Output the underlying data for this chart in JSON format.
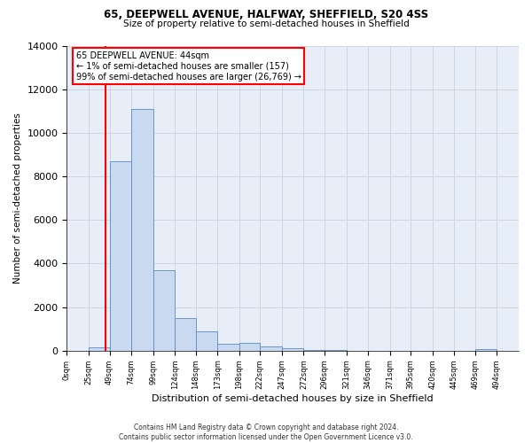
{
  "title1": "65, DEEPWELL AVENUE, HALFWAY, SHEFFIELD, S20 4SS",
  "title2": "Size of property relative to semi-detached houses in Sheffield",
  "xlabel": "Distribution of semi-detached houses by size in Sheffield",
  "ylabel": "Number of semi-detached properties",
  "footnote": "Contains HM Land Registry data © Crown copyright and database right 2024.\nContains public sector information licensed under the Open Government Licence v3.0.",
  "property_label": "65 DEEPWELL AVENUE: 44sqm",
  "smaller_pct": "← 1% of semi-detached houses are smaller (157)",
  "larger_pct": "99% of semi-detached houses are larger (26,769) →",
  "property_size": 44,
  "bar_left_edges": [
    0,
    25,
    49,
    74,
    99,
    124,
    148,
    173,
    198,
    222,
    247,
    272,
    296,
    321,
    346,
    371,
    395,
    420,
    445,
    469
  ],
  "bar_widths": [
    25,
    24,
    25,
    25,
    25,
    24,
    25,
    25,
    24,
    25,
    25,
    24,
    25,
    25,
    25,
    24,
    25,
    25,
    24,
    25
  ],
  "bar_heights": [
    0,
    157,
    8700,
    11100,
    3700,
    1500,
    900,
    300,
    350,
    200,
    100,
    50,
    20,
    10,
    10,
    10,
    10,
    5,
    5,
    70
  ],
  "bar_color": "#c8d9f0",
  "bar_edge_color": "#5b8bc5",
  "red_line_x": 44,
  "ylim": [
    0,
    14000
  ],
  "yticks": [
    0,
    2000,
    4000,
    6000,
    8000,
    10000,
    12000,
    14000
  ],
  "xtick_labels": [
    "0sqm",
    "25sqm",
    "49sqm",
    "74sqm",
    "99sqm",
    "124sqm",
    "148sqm",
    "173sqm",
    "198sqm",
    "222sqm",
    "247sqm",
    "272sqm",
    "296sqm",
    "321sqm",
    "346sqm",
    "371sqm",
    "395sqm",
    "420sqm",
    "445sqm",
    "469sqm",
    "494sqm"
  ],
  "grid_color": "#cdd5e5",
  "background_color": "#e8eef8"
}
